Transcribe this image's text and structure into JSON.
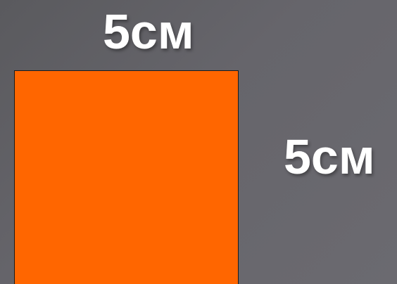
{
  "labels": {
    "top_side": "5см",
    "right_side": "5см"
  },
  "shape": {
    "type": "square",
    "fill_color": "#ff6600",
    "border_color": "#1a1a1a"
  },
  "background_color": "#646368"
}
